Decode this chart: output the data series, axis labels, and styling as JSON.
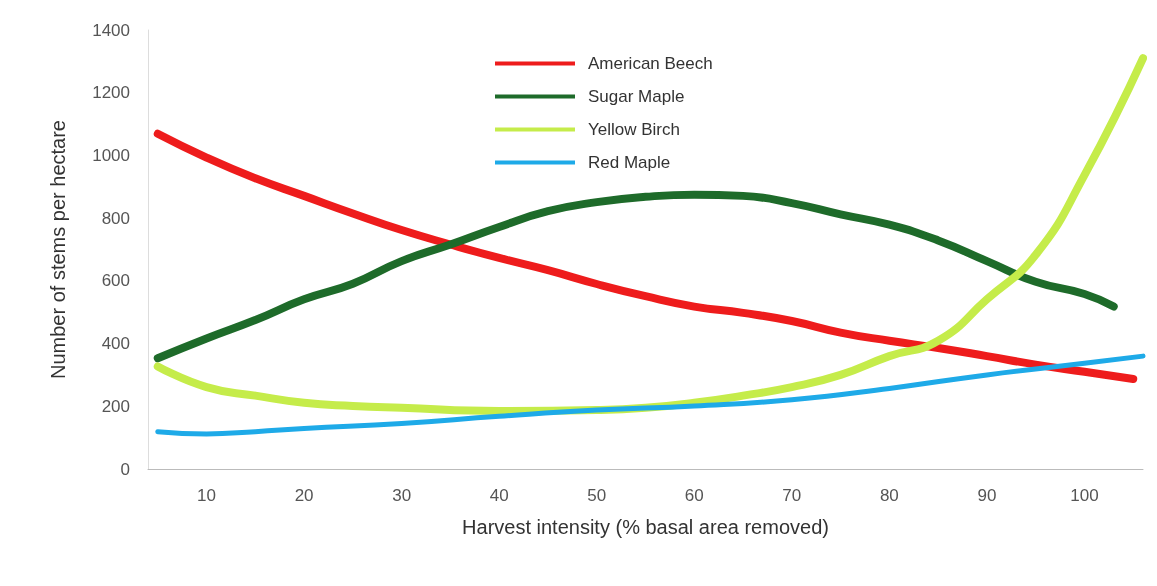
{
  "chart_data": {
    "type": "line",
    "xlabel": "Harvest intensity (% basal area removed)",
    "ylabel": "Number of stems per hectare",
    "xlim": [
      4,
      106
    ],
    "xticks": [
      10,
      20,
      30,
      40,
      50,
      60,
      70,
      80,
      90,
      100
    ],
    "ylim": [
      0,
      1400
    ],
    "yticks": [
      0,
      200,
      400,
      600,
      800,
      1000,
      1200,
      1400
    ],
    "grid": false,
    "legend": "top",
    "marker": "none",
    "line_style": "solid",
    "series": [
      {
        "name": "American Beech",
        "color": "#ee1c1c",
        "x": [
          5,
          10,
          15,
          20,
          25,
          30,
          35,
          40,
          45,
          50,
          55,
          60,
          65,
          70,
          75,
          80,
          85,
          90,
          95,
          100,
          105
        ],
        "values": [
          1069,
          993,
          927,
          871,
          815,
          762,
          716,
          673,
          634,
          590,
          551,
          518,
          498,
          472,
          435,
          409,
          386,
          360,
          333,
          310,
          287
        ]
      },
      {
        "name": "Sugar Maple",
        "color": "#1e6b2a",
        "x": [
          5,
          10,
          15,
          20,
          25,
          30,
          35,
          40,
          45,
          50,
          55,
          60,
          65,
          70,
          75,
          80,
          85,
          90,
          95,
          100,
          103
        ],
        "values": [
          353,
          416,
          475,
          541,
          591,
          663,
          716,
          772,
          822,
          851,
          868,
          875,
          871,
          848,
          812,
          779,
          729,
          663,
          597,
          558,
          518
        ]
      },
      {
        "name": "Yellow Birch",
        "color": "#c5ec4a",
        "x": [
          5,
          10,
          15,
          20,
          25,
          30,
          40,
          50,
          55,
          60,
          65,
          70,
          75,
          80,
          85,
          90,
          95,
          100,
          106
        ],
        "values": [
          327,
          261,
          234,
          211,
          201,
          195,
          185,
          188,
          195,
          211,
          234,
          261,
          300,
          360,
          409,
          541,
          683,
          937,
          1310
        ]
      },
      {
        "name": "Red Maple",
        "color": "#1eaae8",
        "x": [
          5,
          10,
          15,
          20,
          30,
          40,
          50,
          60,
          70,
          80,
          90,
          100,
          106
        ],
        "values": [
          119,
          112,
          119,
          129,
          145,
          168,
          188,
          201,
          221,
          257,
          300,
          337,
          360
        ]
      }
    ]
  }
}
